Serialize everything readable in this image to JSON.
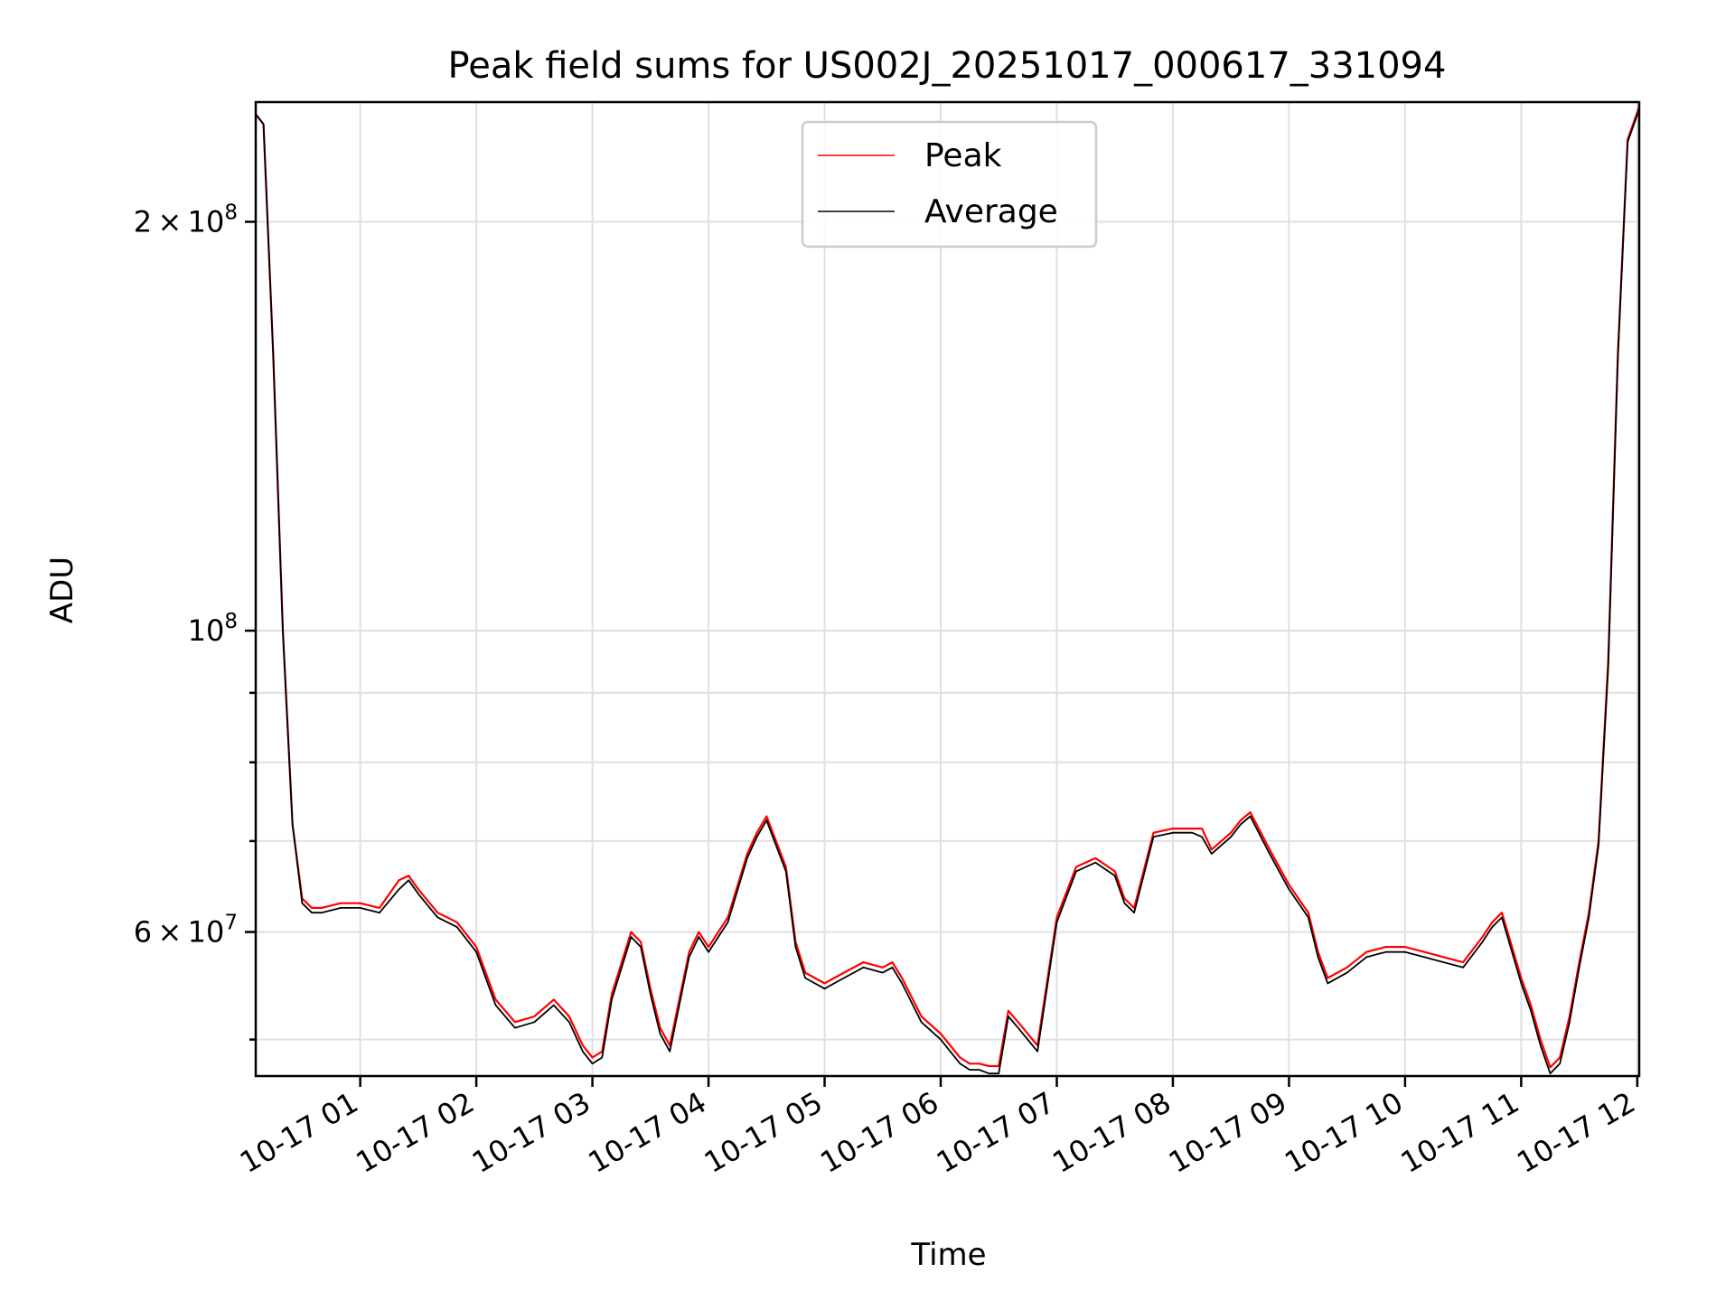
{
  "chart_data": {
    "type": "line",
    "title": "Peak field sums for US002J_20251017_000617_331094",
    "xlabel": "Time",
    "ylabel": "ADU",
    "y_scale": "log",
    "ylim": [
      47000000,
      245000000
    ],
    "xlim": [
      "10-17 00:06",
      "10-17 12:01"
    ],
    "grid": true,
    "legend_position": "upper center",
    "x_ticks": [
      {
        "t": "10-17 01:00",
        "label": "10-17 01"
      },
      {
        "t": "10-17 02:00",
        "label": "10-17 02"
      },
      {
        "t": "10-17 03:00",
        "label": "10-17 03"
      },
      {
        "t": "10-17 04:00",
        "label": "10-17 04"
      },
      {
        "t": "10-17 05:00",
        "label": "10-17 05"
      },
      {
        "t": "10-17 06:00",
        "label": "10-17 06"
      },
      {
        "t": "10-17 07:00",
        "label": "10-17 07"
      },
      {
        "t": "10-17 08:00",
        "label": "10-17 08"
      },
      {
        "t": "10-17 09:00",
        "label": "10-17 09"
      },
      {
        "t": "10-17 10:00",
        "label": "10-17 10"
      },
      {
        "t": "10-17 11:00",
        "label": "10-17 11"
      },
      {
        "t": "10-17 12:00",
        "label": "10-17 12"
      }
    ],
    "y_ticks_major": [
      {
        "value": 60000000,
        "mantissa": "6",
        "base": "10",
        "exp": "7"
      },
      {
        "value": 100000000,
        "mantissa": "",
        "base": "10",
        "exp": "8"
      },
      {
        "value": 200000000,
        "mantissa": "2",
        "base": "10",
        "exp": "8"
      }
    ],
    "y_ticks_minor": [
      50000000,
      70000000,
      80000000,
      90000000
    ],
    "x": [
      "10-17 00:06",
      "10-17 00:10",
      "10-17 00:15",
      "10-17 00:20",
      "10-17 00:25",
      "10-17 00:30",
      "10-17 00:35",
      "10-17 00:40",
      "10-17 00:50",
      "10-17 01:00",
      "10-17 01:10",
      "10-17 01:20",
      "10-17 01:25",
      "10-17 01:30",
      "10-17 01:40",
      "10-17 01:50",
      "10-17 02:00",
      "10-17 02:10",
      "10-17 02:20",
      "10-17 02:30",
      "10-17 02:40",
      "10-17 02:48",
      "10-17 02:55",
      "10-17 03:00",
      "10-17 03:05",
      "10-17 03:10",
      "10-17 03:20",
      "10-17 03:25",
      "10-17 03:30",
      "10-17 03:35",
      "10-17 03:40",
      "10-17 03:50",
      "10-17 03:55",
      "10-17 04:00",
      "10-17 04:10",
      "10-17 04:20",
      "10-17 04:25",
      "10-17 04:30",
      "10-17 04:40",
      "10-17 04:45",
      "10-17 04:50",
      "10-17 05:00",
      "10-17 05:10",
      "10-17 05:20",
      "10-17 05:30",
      "10-17 05:35",
      "10-17 05:40",
      "10-17 05:50",
      "10-17 06:00",
      "10-17 06:10",
      "10-17 06:15",
      "10-17 06:20",
      "10-17 06:25",
      "10-17 06:30",
      "10-17 06:35",
      "10-17 06:40",
      "10-17 06:50",
      "10-17 07:00",
      "10-17 07:10",
      "10-17 07:20",
      "10-17 07:30",
      "10-17 07:35",
      "10-17 07:40",
      "10-17 07:50",
      "10-17 08:00",
      "10-17 08:10",
      "10-17 08:15",
      "10-17 08:20",
      "10-17 08:30",
      "10-17 08:35",
      "10-17 08:40",
      "10-17 08:50",
      "10-17 09:00",
      "10-17 09:10",
      "10-17 09:15",
      "10-17 09:20",
      "10-17 09:30",
      "10-17 09:40",
      "10-17 09:50",
      "10-17 10:00",
      "10-17 10:10",
      "10-17 10:20",
      "10-17 10:30",
      "10-17 10:40",
      "10-17 10:45",
      "10-17 10:50",
      "10-17 11:00",
      "10-17 11:05",
      "10-17 11:10",
      "10-17 11:15",
      "10-17 11:20",
      "10-17 11:25",
      "10-17 11:30",
      "10-17 11:35",
      "10-17 11:40",
      "10-17 11:45",
      "10-17 11:50",
      "10-17 11:55",
      "10-17 12:01"
    ],
    "series": [
      {
        "name": "Peak",
        "color": "#ff0000",
        "values": [
          240000000,
          236000000,
          160000000,
          100000000,
          72000000,
          63500000,
          62500000,
          62500000,
          63000000,
          63000000,
          62500000,
          65500000,
          66000000,
          64500000,
          62000000,
          61000000,
          58500000,
          53500000,
          51500000,
          52000000,
          53500000,
          52000000,
          49500000,
          48500000,
          49000000,
          54000000,
          60000000,
          59000000,
          54500000,
          51000000,
          49500000,
          58000000,
          60000000,
          58500000,
          61500000,
          68500000,
          71000000,
          73000000,
          67000000,
          59000000,
          56000000,
          55000000,
          56000000,
          57000000,
          56500000,
          57000000,
          55500000,
          52000000,
          50500000,
          48500000,
          48000000,
          48000000,
          47800000,
          47800000,
          52500000,
          51500000,
          49500000,
          61500000,
          67000000,
          68000000,
          66500000,
          63500000,
          62500000,
          71000000,
          71500000,
          71500000,
          71500000,
          69000000,
          71000000,
          72500000,
          73500000,
          69000000,
          65000000,
          62000000,
          58000000,
          55500000,
          56500000,
          58000000,
          58500000,
          58500000,
          58000000,
          57500000,
          57000000,
          59500000,
          61000000,
          62000000,
          55500000,
          53000000,
          50000000,
          47700000,
          48500000,
          52000000,
          57000000,
          62000000,
          70000000,
          95000000,
          160000000,
          230000000,
          243000000
        ]
      },
      {
        "name": "Average",
        "color": "#000000",
        "values": [
          240000000,
          236000000,
          160000000,
          100000000,
          72000000,
          63000000,
          62000000,
          62000000,
          62500000,
          62500000,
          62000000,
          64500000,
          65500000,
          64000000,
          61500000,
          60500000,
          58000000,
          53000000,
          51000000,
          51500000,
          53000000,
          51500000,
          49000000,
          48000000,
          48500000,
          53500000,
          59500000,
          58500000,
          54000000,
          50500000,
          49000000,
          57500000,
          59500000,
          58000000,
          61000000,
          68000000,
          70500000,
          72500000,
          66500000,
          58500000,
          55500000,
          54500000,
          55500000,
          56500000,
          56000000,
          56500000,
          55000000,
          51500000,
          50000000,
          48000000,
          47500000,
          47500000,
          47200000,
          47200000,
          52000000,
          51000000,
          49000000,
          61000000,
          66500000,
          67500000,
          66000000,
          63000000,
          62000000,
          70500000,
          71000000,
          71000000,
          70500000,
          68500000,
          70500000,
          72000000,
          73000000,
          68500000,
          64500000,
          61500000,
          57500000,
          55000000,
          56000000,
          57500000,
          58000000,
          58000000,
          57500000,
          57000000,
          56500000,
          59000000,
          60500000,
          61500000,
          55000000,
          52500000,
          49500000,
          47200000,
          48000000,
          51500000,
          56500000,
          61500000,
          69500000,
          94000000,
          159000000,
          229000000,
          242000000
        ]
      }
    ]
  }
}
